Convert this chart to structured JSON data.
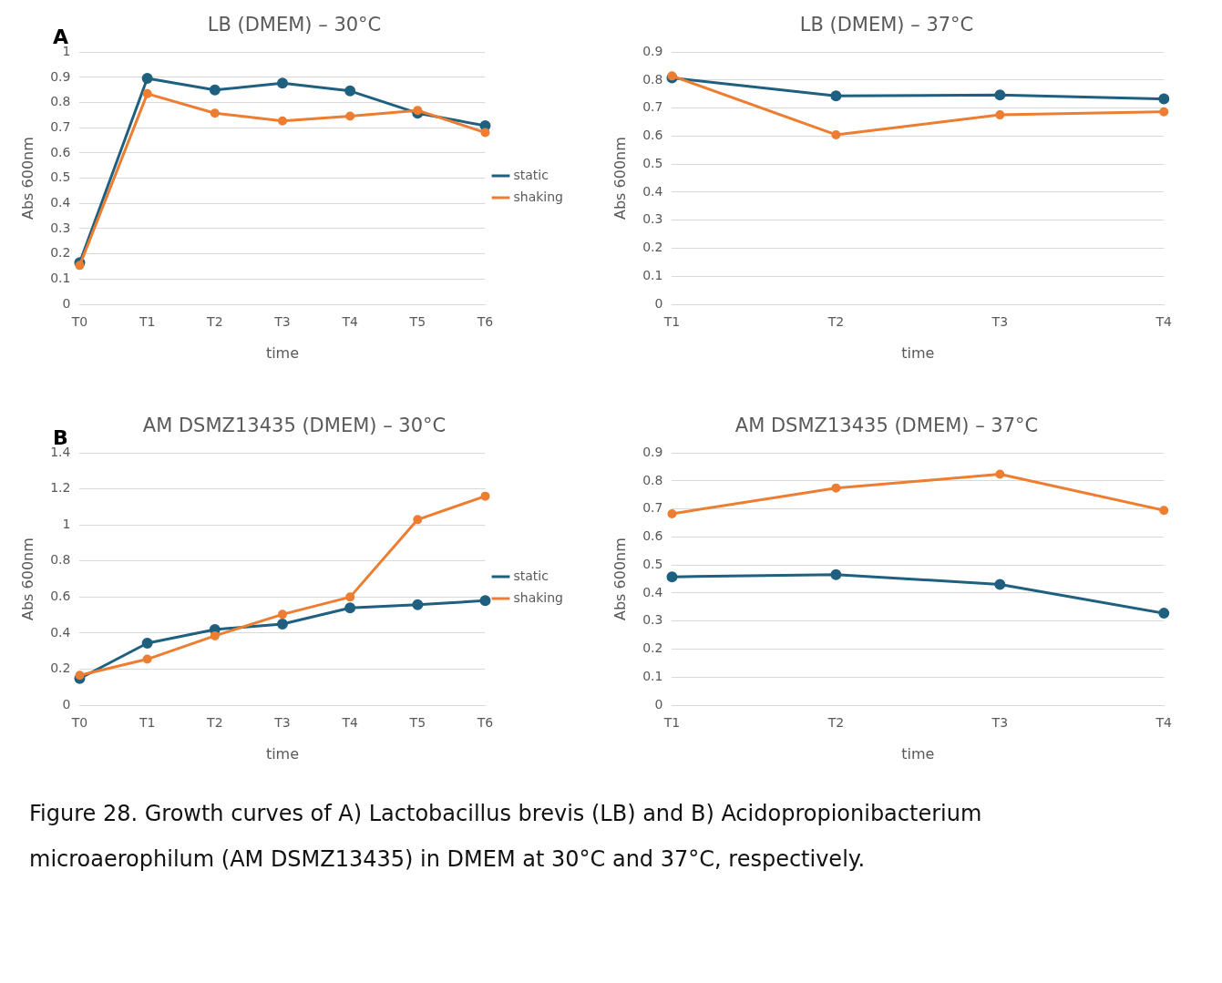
{
  "chart_data": [
    {
      "type": "line",
      "title": "LB (DMEM) – 30°C",
      "xlabel": "time",
      "ylabel": "Abs 600nm",
      "categories": [
        "T0",
        "T1",
        "T2",
        "T3",
        "T4",
        "T5",
        "T6"
      ],
      "series": [
        {
          "name": "static",
          "color": "#1f6080",
          "values": [
            0.165,
            0.896,
            0.85,
            0.877,
            0.846,
            0.758,
            0.708
          ]
        },
        {
          "name": "shaking",
          "color": "#ed7d31",
          "values": [
            0.154,
            0.835,
            0.758,
            0.727,
            0.746,
            0.769,
            0.681
          ]
        }
      ],
      "ylim": [
        0,
        1
      ],
      "yticks": [
        0,
        0.1,
        0.2,
        0.3,
        0.4,
        0.5,
        0.6,
        0.7,
        0.8,
        0.9,
        1
      ],
      "grid": "y",
      "legend": "right",
      "marker": "circle",
      "line_style": "solid",
      "annotations": [
        "A"
      ]
    },
    {
      "type": "line",
      "title": "LB (DMEM) – 37°C",
      "xlabel": "time",
      "ylabel": "Abs 600nm",
      "categories": [
        "T1",
        "T2",
        "T3",
        "T4"
      ],
      "series": [
        {
          "color": "#1f6080",
          "values": [
            0.808,
            0.744,
            0.747,
            0.733
          ]
        },
        {
          "color": "#ed7d31",
          "values": [
            0.815,
            0.605,
            0.676,
            0.687
          ]
        }
      ],
      "ylim": [
        0,
        0.9
      ],
      "yticks": [
        0,
        0.1,
        0.2,
        0.3,
        0.4,
        0.5,
        0.6,
        0.7,
        0.8,
        0.9
      ],
      "grid": "y",
      "marker": "circle",
      "line_style": "solid"
    },
    {
      "type": "line",
      "title": "AM DSMZ13435 (DMEM) – 30°C",
      "xlabel": "time",
      "ylabel": "Abs 600nm",
      "categories": [
        "T0",
        "T1",
        "T2",
        "T3",
        "T4",
        "T5",
        "T6"
      ],
      "series": [
        {
          "name": "static",
          "color": "#1f6080",
          "values": [
            0.148,
            0.344,
            0.42,
            0.45,
            0.54,
            0.558,
            0.58
          ]
        },
        {
          "name": "shaking",
          "color": "#ed7d31",
          "values": [
            0.166,
            0.255,
            0.385,
            0.504,
            0.6,
            1.03,
            1.16
          ]
        }
      ],
      "ylim": [
        0,
        1.4
      ],
      "yticks": [
        0,
        0.2,
        0.4,
        0.6,
        0.8,
        1,
        1.2,
        1.4
      ],
      "grid": "y",
      "legend": "right",
      "marker": "circle",
      "line_style": "solid",
      "annotations": [
        "B"
      ]
    },
    {
      "type": "line",
      "title": "AM DSMZ13435 (DMEM) – 37°C",
      "xlabel": "time",
      "ylabel": "Abs 600nm",
      "categories": [
        "T1",
        "T2",
        "T3",
        "T4"
      ],
      "series": [
        {
          "color": "#1f6080",
          "values": [
            0.458,
            0.466,
            0.431,
            0.328
          ]
        },
        {
          "color": "#ed7d31",
          "values": [
            0.683,
            0.775,
            0.824,
            0.695
          ]
        }
      ],
      "ylim": [
        0,
        0.9
      ],
      "yticks": [
        0,
        0.1,
        0.2,
        0.3,
        0.4,
        0.5,
        0.6,
        0.7,
        0.8,
        0.9
      ],
      "grid": "y",
      "marker": "circle",
      "line_style": "solid",
      "annotations": [
        "Figure 28. Growth curves of A) Lactobacillus brevis (LB) and B) Acidopropionibacterium microaerophilum (AM DSMZ13435) in DMEM at 30°C and 37°C, respectively."
      ]
    }
  ]
}
